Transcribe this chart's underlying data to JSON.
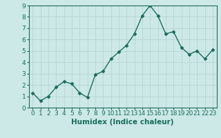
{
  "x": [
    0,
    1,
    2,
    3,
    4,
    5,
    6,
    7,
    8,
    9,
    10,
    11,
    12,
    13,
    14,
    15,
    16,
    17,
    18,
    19,
    20,
    21,
    22,
    23
  ],
  "y": [
    1.3,
    0.6,
    1.0,
    1.8,
    2.3,
    2.1,
    1.3,
    0.9,
    2.9,
    3.2,
    4.3,
    4.9,
    5.5,
    6.5,
    8.1,
    9.0,
    8.1,
    6.5,
    6.7,
    5.3,
    4.7,
    5.0,
    4.3,
    5.1
  ],
  "line_color": "#1a6b5a",
  "marker": "D",
  "marker_size": 2.5,
  "bg_color": "#cce9e7",
  "grid_color": "#b8d4d2",
  "xlabel": "Humidex (Indice chaleur)",
  "xlabel_fontsize": 7.5,
  "tick_fontsize": 6.5,
  "ylim": [
    0,
    9
  ],
  "xlim": [
    -0.5,
    23.5
  ],
  "yticks": [
    0,
    1,
    2,
    3,
    4,
    5,
    6,
    7,
    8,
    9
  ],
  "xticks": [
    0,
    1,
    2,
    3,
    4,
    5,
    6,
    7,
    8,
    9,
    10,
    11,
    12,
    13,
    14,
    15,
    16,
    17,
    18,
    19,
    20,
    21,
    22,
    23
  ],
  "spine_color": "#1a6b5a",
  "axis_bottom_color": "#1a6b5a",
  "linewidth": 1.0
}
